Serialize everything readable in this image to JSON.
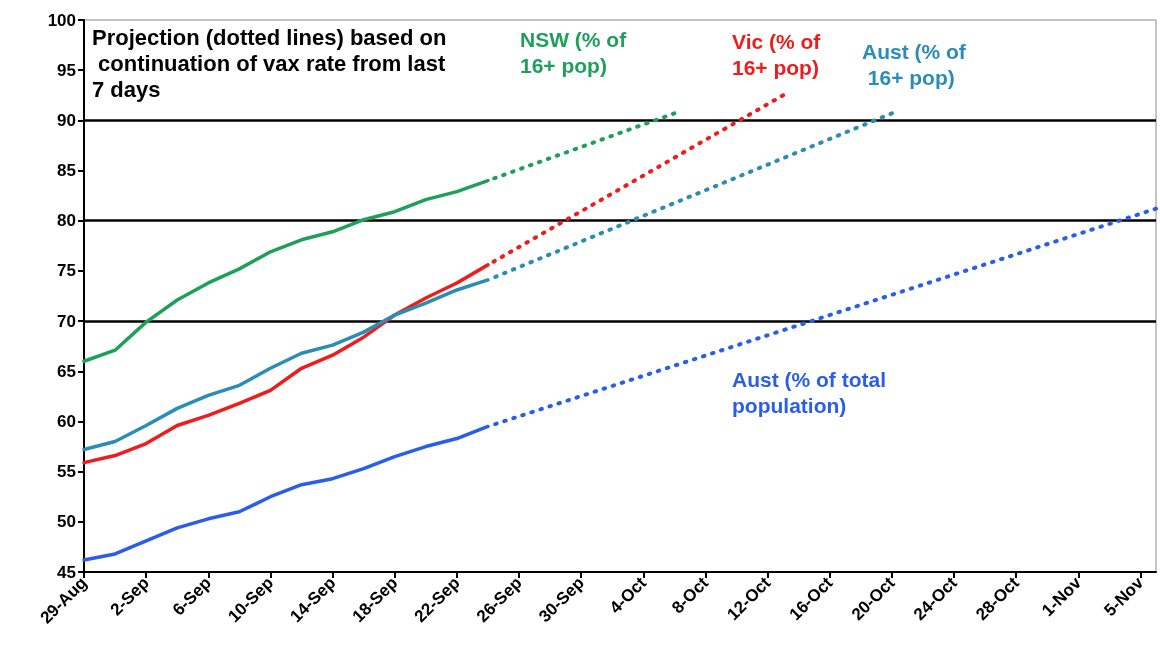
{
  "chart_data": {
    "type": "line",
    "annotations": [
      "Projection (dotted lines) based on continuation of vax rate from last 7 days"
    ],
    "xlim": [
      "--08-29",
      "--11-06"
    ],
    "xticks": [
      {
        "value": "--08-29",
        "label": "29-Aug"
      },
      {
        "value": "--09-02",
        "label": "2-Sep"
      },
      {
        "value": "--09-06",
        "label": "6-Sep"
      },
      {
        "value": "--09-10",
        "label": "10-Sep"
      },
      {
        "value": "--09-14",
        "label": "14-Sep"
      },
      {
        "value": "--09-18",
        "label": "18-Sep"
      },
      {
        "value": "--09-22",
        "label": "22-Sep"
      },
      {
        "value": "--09-26",
        "label": "26-Sep"
      },
      {
        "value": "--09-30",
        "label": "30-Sep"
      },
      {
        "value": "--10-04",
        "label": "4-Oct"
      },
      {
        "value": "--10-08",
        "label": "8-Oct"
      },
      {
        "value": "--10-12",
        "label": "12-Oct"
      },
      {
        "value": "--10-16",
        "label": "16-Oct"
      },
      {
        "value": "--10-20",
        "label": "20-Oct"
      },
      {
        "value": "--10-24",
        "label": "24-Oct"
      },
      {
        "value": "--10-28",
        "label": "28-Oct"
      },
      {
        "value": "--11-01",
        "label": "1-Nov"
      },
      {
        "value": "--11-05",
        "label": "5-Nov"
      }
    ],
    "ylim": [
      45,
      100
    ],
    "yticks": [
      45,
      50,
      55,
      60,
      65,
      70,
      75,
      80,
      85,
      90,
      95,
      100
    ],
    "grid": false,
    "legend": false,
    "marker": "none",
    "ref_lines": [
      {
        "axis": "y",
        "value": 70,
        "color": "#000000"
      },
      {
        "axis": "y",
        "value": 80,
        "color": "#000000"
      },
      {
        "axis": "y",
        "value": 90,
        "color": "#000000"
      }
    ],
    "x": [
      "--08-29",
      "--08-31",
      "--09-02",
      "--09-04",
      "--09-06",
      "--09-08",
      "--09-10",
      "--09-12",
      "--09-14",
      "--09-16",
      "--09-18",
      "--09-20",
      "--09-22",
      "--09-24"
    ],
    "series": [
      {
        "name": "NSW (% of 16+ pop)",
        "color": "#1fa05a",
        "line_style": "solid",
        "values": [
          66.0,
          67.1,
          69.9,
          72.1,
          73.8,
          75.2,
          76.9,
          78.1,
          78.9,
          80.1,
          80.9,
          82.1,
          82.9,
          84.0
        ]
      },
      {
        "name": "Vic (% of 16+ pop)",
        "color": "#ee1c1c",
        "line_style": "solid",
        "values": [
          55.9,
          56.6,
          57.8,
          59.6,
          60.6,
          61.8,
          63.1,
          65.3,
          66.6,
          68.4,
          70.6,
          72.3,
          73.8,
          75.6
        ]
      },
      {
        "name": "Aust (% of 16+ pop)",
        "color": "#2b8db5",
        "line_style": "solid",
        "values": [
          57.2,
          58.0,
          59.6,
          61.3,
          62.6,
          63.6,
          65.3,
          66.8,
          67.6,
          68.9,
          70.6,
          71.8,
          73.1,
          74.1
        ]
      },
      {
        "name": "Aust (% of total population)",
        "color": "#2a5ee8",
        "line_style": "solid",
        "values": [
          46.2,
          46.8,
          48.1,
          49.4,
          50.3,
          51.0,
          52.5,
          53.7,
          54.3,
          55.3,
          56.5,
          57.5,
          58.3,
          59.5
        ]
      },
      {
        "color": "#1fa05a",
        "line_style": "dotted",
        "x": [
          "--09-24",
          "--10-06"
        ],
        "values": [
          84.0,
          90.7
        ]
      },
      {
        "color": "#ee1c1c",
        "line_style": "dotted",
        "x": [
          "--09-24",
          "--10-13"
        ],
        "values": [
          75.6,
          92.5
        ]
      },
      {
        "color": "#2b8db5",
        "line_style": "dotted",
        "x": [
          "--09-24",
          "--10-20"
        ],
        "values": [
          74.1,
          90.7
        ]
      },
      {
        "color": "#2a5ee8",
        "line_style": "dotted",
        "x": [
          "--09-24",
          "--11-06"
        ],
        "values": [
          59.5,
          81.2
        ]
      }
    ]
  }
}
